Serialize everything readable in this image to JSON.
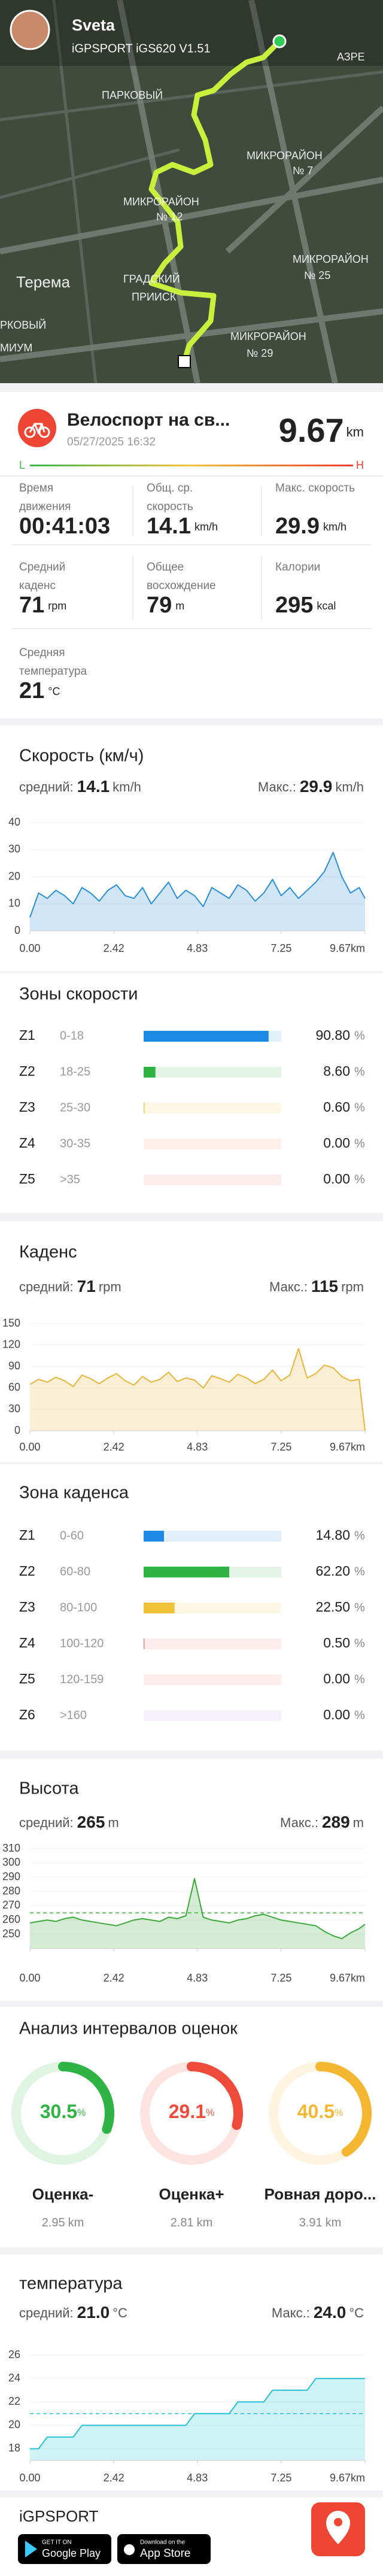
{
  "header": {
    "user": "Sveta",
    "device": "iGPSPORT iGS620 V1.51"
  },
  "map": {
    "labels": [
      "АЗРЕ",
      "ПАРКОВЫЙ",
      "МИКРОРАЙОН",
      "№ 7",
      "МИКРОРАЙОН",
      "№ 12",
      "МИКРОРАЙОН",
      "№ 25",
      "Терема",
      "ГРАДСКИЙ",
      "ПРИИСК",
      "РКОВЫЙ",
      "МИУМ",
      "МИКРОРАЙОН",
      "№ 29"
    ]
  },
  "activity": {
    "title": "Велоспорт на св...",
    "date": "05/27/2025 16:32",
    "distance": 9.67,
    "distance_unit": "km",
    "scale_low": "L",
    "scale_high": "H"
  },
  "stats": [
    {
      "label": [
        "Время",
        "движения"
      ],
      "value": "00:41:03"
    },
    {
      "label": [
        "Общ. ср.",
        "скорость"
      ],
      "value": 14.1,
      "unit": "km/h"
    },
    {
      "label": [
        "Макс. скорость"
      ],
      "value": 29.9,
      "unit": "km/h"
    },
    {
      "label": [
        "Средний",
        "каденс"
      ],
      "value": 71,
      "unit": "rpm"
    },
    {
      "label": [
        "Общее",
        "восхождение"
      ],
      "value": 79,
      "unit": "m"
    },
    {
      "label": [
        "Калории"
      ],
      "value": 295,
      "unit": "kcal"
    },
    {
      "label": [
        "Средняя",
        "температура"
      ],
      "value": 21,
      "unit": "°C"
    }
  ],
  "chart_data": [
    {
      "type": "line",
      "title": "Скорость (км/ч)",
      "avg_label": "средний:",
      "avg": 14.1,
      "max_label": "Макс.:",
      "max": 29.9,
      "unit": "km/h",
      "color": "#2a8ed8",
      "x": [
        0,
        0.25,
        0.5,
        0.75,
        1,
        1.25,
        1.5,
        1.75,
        2,
        2.25,
        2.5,
        2.75,
        3,
        3.25,
        3.5,
        3.75,
        4,
        4.25,
        4.5,
        4.75,
        5,
        5.25,
        5.5,
        5.75,
        6,
        6.25,
        6.5,
        6.75,
        7,
        7.25,
        7.5,
        7.75,
        8,
        8.25,
        8.5,
        8.75,
        9,
        9.25,
        9.5,
        9.67
      ],
      "values": [
        5,
        14,
        12,
        15,
        13,
        10,
        16,
        14,
        11,
        15,
        17,
        13,
        12,
        16,
        10,
        14,
        18,
        12,
        15,
        13,
        9,
        16,
        14,
        12,
        17,
        15,
        11,
        14,
        19,
        13,
        16,
        12,
        15,
        18,
        22,
        29,
        20,
        14,
        16,
        12
      ],
      "xlim": [
        0,
        9.67
      ],
      "xticks": [
        {
          "value": 0,
          "label": "0.00"
        },
        2.42,
        4.83,
        7.25,
        {
          "value": 9.67,
          "label": "9.67km"
        }
      ],
      "ylim": [
        0,
        40
      ],
      "yticks": [
        0,
        10,
        20,
        30,
        40
      ],
      "avg_line": false
    },
    {
      "type": "hbar",
      "title": "Зоны скорости",
      "categories": [
        "Z1",
        "Z2",
        "Z3",
        "Z4",
        "Z5"
      ],
      "ranges": [
        "0-18",
        "18-25",
        "25-30",
        "30-35",
        ">35"
      ],
      "values": [
        90.8,
        8.6,
        0.6,
        0,
        0
      ],
      "value_labels": [
        "90.80",
        "8.60",
        "0.60",
        "0.00",
        "0.00"
      ],
      "unit": "%",
      "xlim": [
        0,
        100
      ],
      "colors": [
        "#1e88e5",
        "#2fb344",
        "#f0c23a",
        "#f08a4b",
        "#f06c6c"
      ]
    },
    {
      "type": "line",
      "title": "Каденс",
      "avg_label": "средний:",
      "avg": 71,
      "max_label": "Макс.:",
      "max": 115,
      "unit": "rpm",
      "color": "#e9b43a",
      "x": [
        0,
        0.25,
        0.5,
        0.75,
        1,
        1.25,
        1.5,
        1.75,
        2,
        2.25,
        2.5,
        2.75,
        3,
        3.25,
        3.5,
        3.75,
        4,
        4.25,
        4.5,
        4.75,
        5,
        5.25,
        5.5,
        5.75,
        6,
        6.25,
        6.5,
        6.75,
        7,
        7.25,
        7.5,
        7.75,
        8,
        8.25,
        8.5,
        8.75,
        9,
        9.25,
        9.5,
        9.67
      ],
      "values": [
        65,
        72,
        68,
        75,
        70,
        62,
        78,
        73,
        66,
        74,
        80,
        70,
        64,
        76,
        68,
        72,
        82,
        69,
        74,
        71,
        60,
        77,
        73,
        68,
        79,
        74,
        66,
        72,
        85,
        70,
        78,
        115,
        74,
        80,
        92,
        88,
        76,
        70,
        72,
        0
      ],
      "xlim": [
        0,
        9.67
      ],
      "xticks": [
        {
          "value": 0,
          "label": "0.00"
        },
        2.42,
        4.83,
        7.25,
        {
          "value": 9.67,
          "label": "9.67km"
        }
      ],
      "ylim": [
        0,
        150
      ],
      "yticks": [
        0,
        30,
        60,
        90,
        120,
        150
      ],
      "avg_line": false
    },
    {
      "type": "hbar",
      "title": "Зона каденса",
      "categories": [
        "Z1",
        "Z2",
        "Z3",
        "Z4",
        "Z5",
        "Z6"
      ],
      "ranges": [
        "0-60",
        "60-80",
        "80-100",
        "100-120",
        "120-159",
        ">160"
      ],
      "values": [
        14.8,
        62.2,
        22.5,
        0.5,
        0,
        0
      ],
      "value_labels": [
        "14.80",
        "62.20",
        "22.50",
        "0.50",
        "0.00",
        "0.00"
      ],
      "unit": "%",
      "xlim": [
        0,
        100
      ],
      "colors": [
        "#1e88e5",
        "#2fb344",
        "#f0c23a",
        "#f06c6c",
        "#f06c6c",
        "#b58be8"
      ]
    },
    {
      "type": "line",
      "title": "Высота",
      "avg_label": "средний:",
      "avg": 265,
      "max_label": "Макс.:",
      "max": 289,
      "unit": "m",
      "color": "#3aa93a",
      "x": [
        0,
        0.25,
        0.5,
        0.75,
        1,
        1.25,
        1.5,
        1.75,
        2,
        2.25,
        2.5,
        2.75,
        3,
        3.25,
        3.5,
        3.75,
        4,
        4.25,
        4.5,
        4.75,
        5,
        5.25,
        5.5,
        5.75,
        6,
        6.25,
        6.5,
        6.75,
        7,
        7.25,
        7.5,
        7.75,
        8,
        8.25,
        8.5,
        8.75,
        9,
        9.25,
        9.5,
        9.67
      ],
      "values": [
        258,
        259,
        260,
        259,
        261,
        262,
        260,
        259,
        258,
        257,
        256,
        258,
        260,
        261,
        260,
        259,
        262,
        261,
        263,
        289,
        262,
        260,
        259,
        258,
        260,
        261,
        263,
        264,
        262,
        260,
        259,
        258,
        257,
        256,
        252,
        249,
        247,
        251,
        254,
        257
      ],
      "xlim": [
        0,
        9.67
      ],
      "xticks": [
        {
          "value": 0,
          "label": "0.00"
        },
        2.42,
        4.83,
        7.25,
        {
          "value": 9.67,
          "label": "9.67km"
        }
      ],
      "ylim": [
        240,
        310
      ],
      "yticks": [
        250,
        260,
        270,
        280,
        290,
        300,
        310
      ],
      "avg_line": true
    },
    {
      "type": "donut",
      "title": "Анализ интервалов оценок",
      "categories": [
        "Оценка-",
        "Оценка+",
        "Ровная доро..."
      ],
      "values": [
        30.5,
        29.1,
        40.5
      ],
      "unit": "%",
      "distances": [
        2.95,
        2.81,
        3.91
      ],
      "distance_unit": "km",
      "colors": [
        "#2fb344",
        "#ef4b3a",
        "#f5b731"
      ]
    },
    {
      "type": "line",
      "title": "температура",
      "avg_label": "средний:",
      "avg": {
        "value": 21,
        "label": "21.0"
      },
      "max_label": "Макс.:",
      "max": {
        "value": 24,
        "label": "24.0"
      },
      "unit": "°C",
      "color": "#25c2d6",
      "x": [
        0,
        0.25,
        0.5,
        0.75,
        1,
        1.25,
        1.5,
        1.75,
        2,
        2.25,
        2.5,
        2.75,
        3,
        3.25,
        3.5,
        3.75,
        4,
        4.25,
        4.5,
        4.75,
        5,
        5.25,
        5.5,
        5.75,
        6,
        6.25,
        6.5,
        6.75,
        7,
        7.25,
        7.5,
        7.75,
        8,
        8.25,
        8.5,
        8.75,
        9,
        9.25,
        9.5,
        9.67
      ],
      "values": [
        18,
        18,
        19,
        19,
        19,
        19,
        20,
        20,
        20,
        20,
        20,
        20,
        20,
        20,
        20,
        20,
        20,
        20,
        20,
        21,
        21,
        21,
        21,
        21,
        22,
        22,
        22,
        22,
        23,
        23,
        23,
        23,
        23,
        24,
        24,
        24,
        24,
        24,
        24,
        24
      ],
      "xlim": [
        0,
        9.67
      ],
      "xticks": [
        {
          "value": 0,
          "label": "0.00"
        },
        2.42,
        4.83,
        7.25,
        {
          "value": 9.67,
          "label": "9.67km"
        }
      ],
      "ylim": [
        17,
        26
      ],
      "yticks": [
        18,
        20,
        22,
        24,
        26
      ],
      "avg_line": true
    }
  ],
  "footer": {
    "brand": "iGPSPORT",
    "google_small": "GET IT ON",
    "google": "Google Play",
    "apple_small": "Download on the",
    "apple": "App Store"
  }
}
